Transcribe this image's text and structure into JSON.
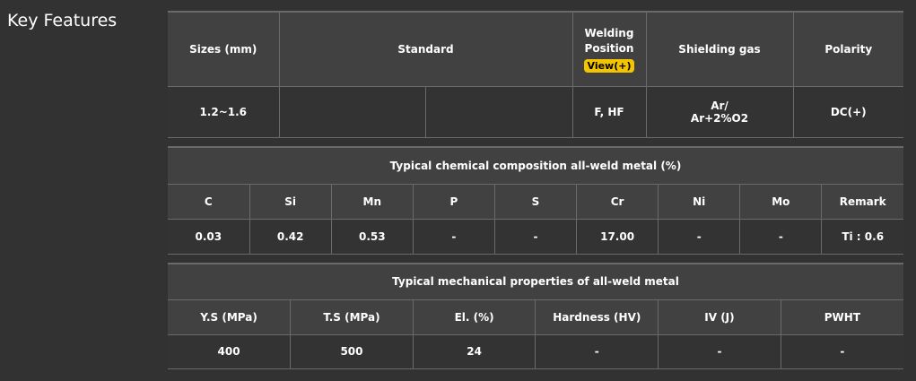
{
  "title": "Key Features",
  "spec": {
    "headers": {
      "sizes": "Sizes (mm)",
      "standard": "Standard",
      "welding_position": "Welding Position",
      "view_button": "View(+)",
      "shielding_gas": "Shielding gas",
      "polarity": "Polarity"
    },
    "row": {
      "sizes": "1.2~1.6",
      "standard_1": "",
      "standard_2": "",
      "welding_position": "F, HF",
      "shielding_gas_1": "Ar/",
      "shielding_gas_2": "Ar+2%O2",
      "polarity": "DC(+)"
    }
  },
  "chemical": {
    "title": "Typical chemical composition all-weld metal (%)",
    "headers": [
      "C",
      "Si",
      "Mn",
      "P",
      "S",
      "Cr",
      "Ni",
      "Mo",
      "Remark"
    ],
    "values": [
      "0.03",
      "0.42",
      "0.53",
      "-",
      "-",
      "17.00",
      "-",
      "-",
      "Ti : 0.6"
    ]
  },
  "mechanical": {
    "title": "Typical mechanical properties of all-weld metal",
    "headers": [
      "Y.S (MPa)",
      "T.S (MPa)",
      "El. (%)",
      "Hardness (HV)",
      "IV (J)",
      "PWHT"
    ],
    "values": [
      "400",
      "500",
      "24",
      "-",
      "-",
      "-"
    ]
  },
  "colors": {
    "view_button": "#f5c400"
  }
}
